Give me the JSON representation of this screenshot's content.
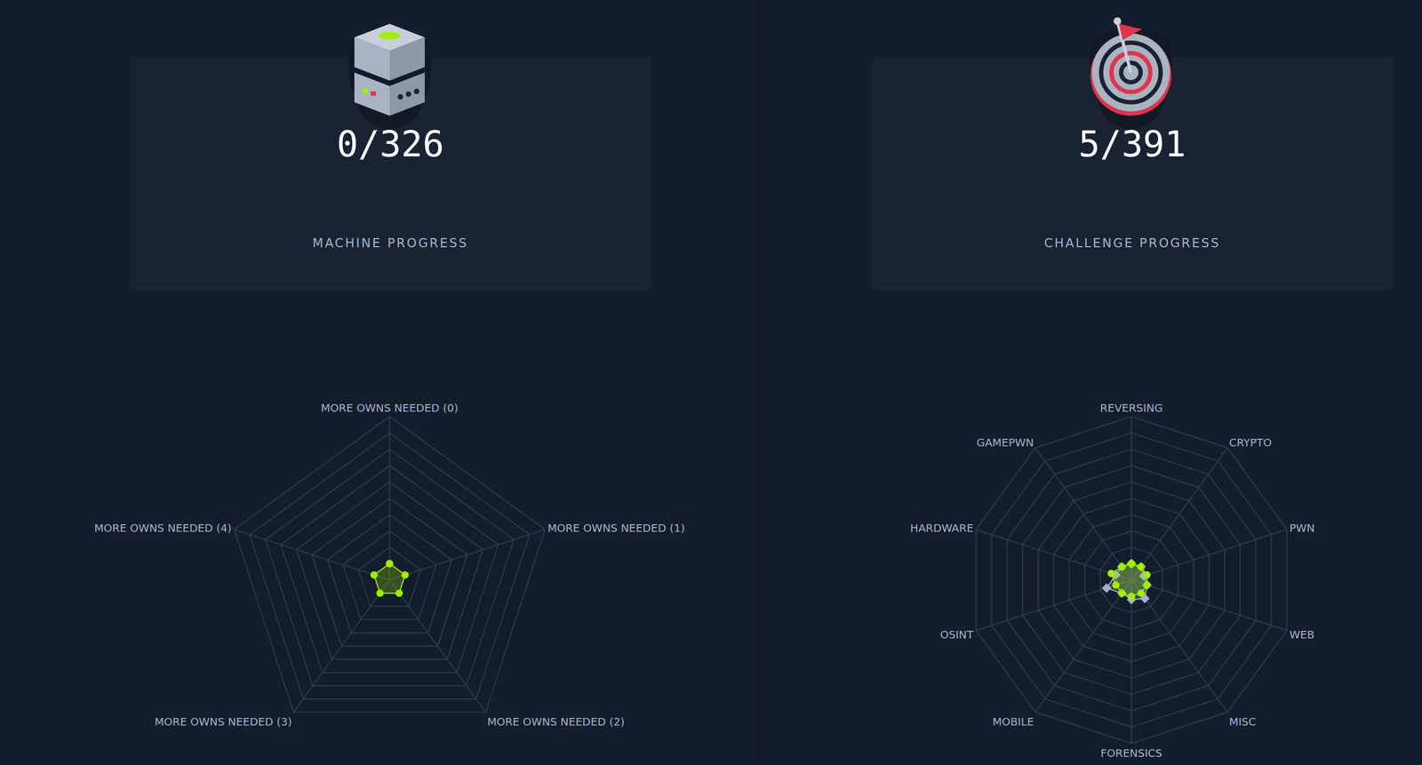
{
  "progress_cards": [
    {
      "value": "0/326",
      "label": "MACHINE PROGRESS"
    },
    {
      "value": "5/391",
      "label": "CHALLENGE PROGRESS"
    }
  ],
  "chart_data": [
    {
      "type": "radar",
      "categories": [
        "MORE OWNS NEEDED (0)",
        "MORE OWNS NEEDED (1)",
        "MORE OWNS NEEDED (2)",
        "MORE OWNS NEEDED (3)",
        "MORE OWNS NEEDED (4)"
      ],
      "series": [
        {
          "color": "#9fef00",
          "marker": "circle",
          "values": [
            1,
            1,
            1,
            1,
            1
          ]
        }
      ],
      "rlim": [
        0,
        10
      ],
      "rticks": [
        0,
        1,
        2,
        3,
        4,
        5,
        6,
        7,
        8,
        9,
        10
      ],
      "tick_labels": false,
      "grid": true
    },
    {
      "type": "radar",
      "categories": [
        "REVERSING",
        "CRYPTO",
        "PWN",
        "WEB",
        "MISC",
        "FORENSICS",
        "MOBILE",
        "OSINT",
        "HARDWARE",
        "GAMEPWN"
      ],
      "series": [
        {
          "color": "#a4b1cd",
          "marker": "diamond",
          "values": [
            1,
            1,
            0.8,
            1,
            1.4,
            1.2,
            1,
            1.6,
            1,
            1
          ]
        },
        {
          "color": "#9fef00",
          "marker": "circle",
          "values": [
            1,
            1,
            1,
            1,
            1,
            1,
            1,
            1,
            1.3,
            1
          ]
        }
      ],
      "rlim": [
        0,
        10
      ],
      "rticks": [
        0,
        1,
        2,
        3,
        4,
        5,
        6,
        7,
        8,
        9,
        10
      ],
      "tick_labels": false,
      "grid": true
    }
  ]
}
